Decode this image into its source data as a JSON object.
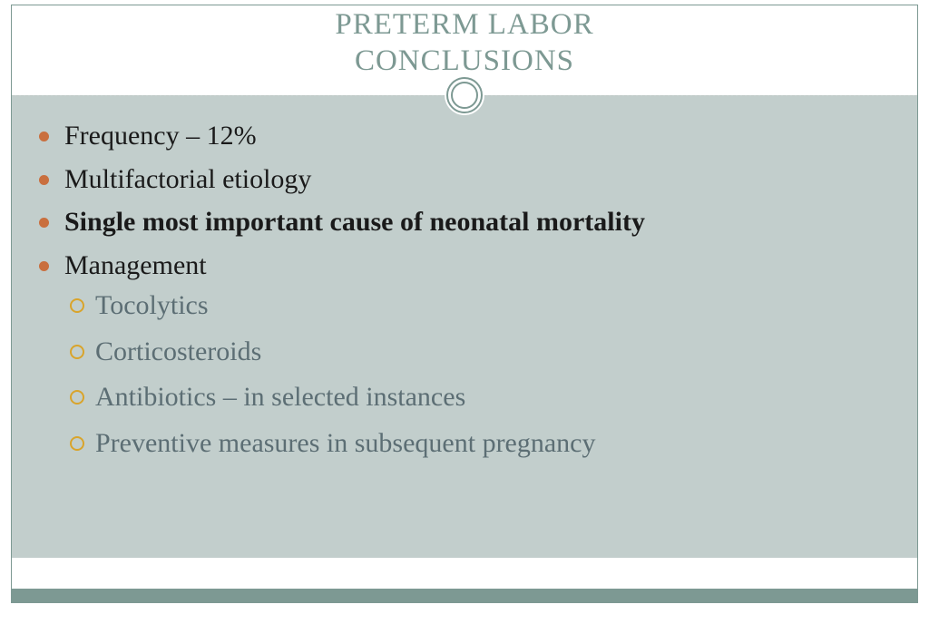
{
  "slide": {
    "title_line1": "PRETERM LABOR",
    "title_line2": "CONCLUSIONS",
    "title_color": "#7d9993",
    "title_fontsize": 33,
    "bullets_level1": [
      {
        "text": "Frequency –  12%",
        "bold": false
      },
      {
        "text": "Multifactorial etiology",
        "bold": false
      },
      {
        "text": "Single most important cause of neonatal mortality",
        "bold": true
      },
      {
        "text": "Management",
        "bold": false
      }
    ],
    "bullets_level2": [
      "Tocolytics",
      "Corticosteroids",
      "Antibiotics – in selected instances",
      "Preventive measures in subsequent pregnancy"
    ],
    "styling": {
      "background_color": "#ffffff",
      "content_background": "#c2cecc",
      "border_color": "#7d9993",
      "footer_bar_color": "#7d9993",
      "divider_color": "#bfc9c6",
      "level1_bullet_color": "#c96f3e",
      "level1_text_color": "#1a1a1a",
      "level1_fontsize": 30,
      "level2_ring_color": "#d9a42b",
      "level2_text_color": "#5c6e74",
      "level2_fontsize": 30,
      "font_family": "Georgia, serif"
    }
  }
}
